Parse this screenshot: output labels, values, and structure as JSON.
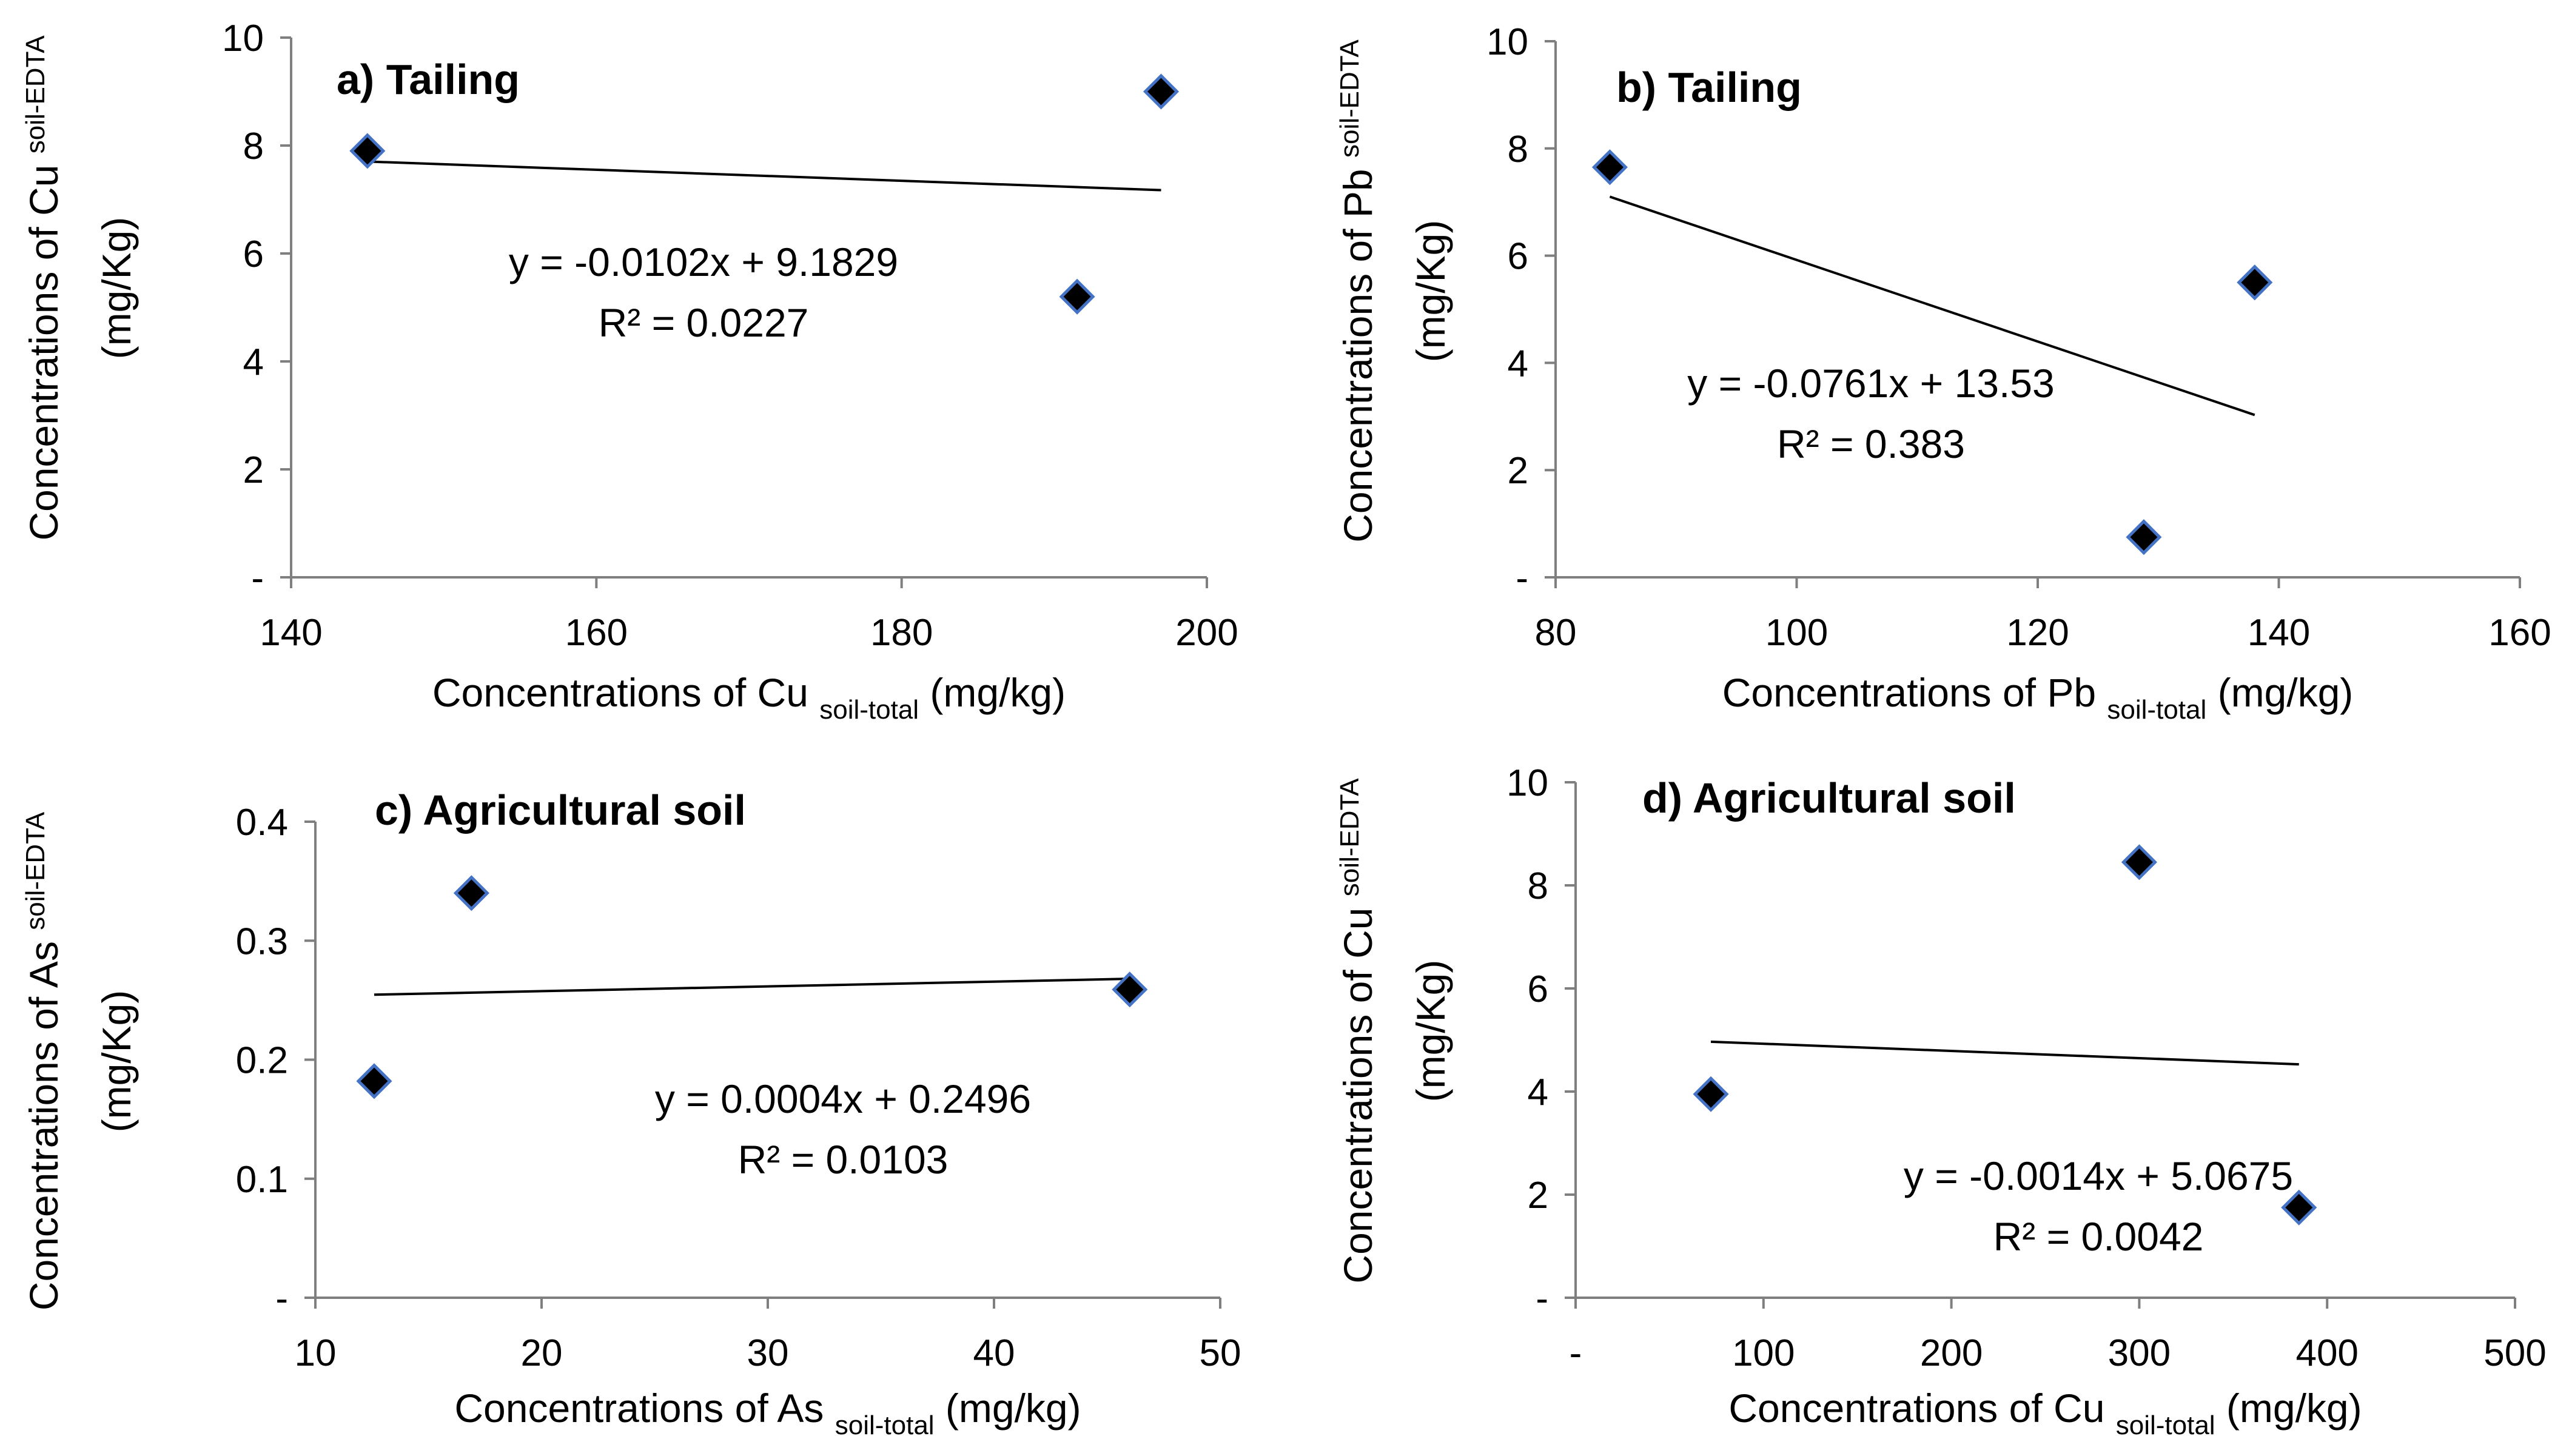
{
  "chart_data": [
    {
      "type": "scatter",
      "title": "a) Tailing",
      "xlabel": {
        "main": "Concentrations of Cu",
        "sub": "soil-total",
        "unit": "(mg/kg)"
      },
      "ylabel": {
        "main": "Concentrations of Cu",
        "sub": "soil-EDTA",
        "unit": "(mg/Kg)"
      },
      "xlim": [
        140,
        200
      ],
      "ylim": [
        0,
        10
      ],
      "xticks": [
        "140",
        "160",
        "180",
        "200"
      ],
      "yticks": [
        "-",
        "2",
        "4",
        "6",
        "8",
        "10"
      ],
      "points": [
        {
          "x": 145,
          "y": 7.9
        },
        {
          "x": 191.5,
          "y": 5.2
        },
        {
          "x": 197,
          "y": 9.0
        }
      ],
      "trendline": {
        "slope": -0.0102,
        "intercept": 9.1829,
        "x_range": [
          145,
          197
        ]
      },
      "equation": "y = -0.0102x + 9.1829",
      "r2": "R² = 0.0227",
      "marker_color": "#000000",
      "marker_edge": "#4472c4"
    },
    {
      "type": "scatter",
      "title": "b) Tailing",
      "xlabel": {
        "main": "Concentrations of Pb",
        "sub": "soil-total",
        "unit": "(mg/kg)"
      },
      "ylabel": {
        "main": "Concentrations of Pb",
        "sub": "soil-EDTA",
        "unit": "(mg/Kg)"
      },
      "xlim": [
        80,
        160
      ],
      "ylim": [
        0,
        10
      ],
      "xticks": [
        "80",
        "100",
        "120",
        "140",
        "160"
      ],
      "yticks": [
        "-",
        "2",
        "4",
        "6",
        "8",
        "10"
      ],
      "points": [
        {
          "x": 84.5,
          "y": 7.65
        },
        {
          "x": 128.8,
          "y": 0.75
        },
        {
          "x": 138,
          "y": 5.5
        }
      ],
      "trendline": {
        "slope": -0.0761,
        "intercept": 13.53,
        "x_range": [
          84.5,
          138
        ]
      },
      "equation": "y = -0.0761x + 13.53",
      "r2": "R² = 0.383",
      "marker_color": "#000000",
      "marker_edge": "#4472c4"
    },
    {
      "type": "scatter",
      "title": "c) Agricultural soil",
      "xlabel": {
        "main": "Concentrations of As",
        "sub": "soil-total",
        "unit": "(mg/kg)"
      },
      "ylabel": {
        "main": "Concentrations of As",
        "sub": "soil-EDTA",
        "unit": "(mg/Kg)"
      },
      "xlim": [
        10,
        50
      ],
      "ylim": [
        0,
        0.4
      ],
      "xticks": [
        "10",
        "20",
        "30",
        "40",
        "50"
      ],
      "yticks": [
        "-",
        "0.1",
        "0.2",
        "0.3",
        "0.4"
      ],
      "points": [
        {
          "x": 12.6,
          "y": 0.182
        },
        {
          "x": 16.9,
          "y": 0.34
        },
        {
          "x": 46,
          "y": 0.259
        }
      ],
      "trendline": {
        "slope": 0.0004,
        "intercept": 0.2496,
        "x_range": [
          12.6,
          46
        ]
      },
      "equation": "y = 0.0004x + 0.2496",
      "r2": "R² = 0.0103",
      "marker_color": "#000000",
      "marker_edge": "#4472c4"
    },
    {
      "type": "scatter",
      "title": "d) Agricultural soil",
      "xlabel": {
        "main": "Concentrations of Cu",
        "sub": "soil-total",
        "unit": "(mg/kg)"
      },
      "ylabel": {
        "main": "Concentrations of Cu",
        "sub": "soil-EDTA",
        "unit": "(mg/Kg)"
      },
      "xlim": [
        0,
        500
      ],
      "ylim": [
        0,
        10
      ],
      "xticks": [
        "-",
        "100",
        "200",
        "300",
        "400",
        "500"
      ],
      "yticks": [
        "-",
        "2",
        "4",
        "6",
        "8",
        "10"
      ],
      "points": [
        {
          "x": 72,
          "y": 3.95
        },
        {
          "x": 300,
          "y": 8.45
        },
        {
          "x": 385,
          "y": 1.75
        }
      ],
      "trendline": {
        "slope": -0.0014,
        "intercept": 5.0675,
        "x_range": [
          72,
          385
        ]
      },
      "equation": "y = -0.0014x + 5.0675",
      "r2": "R² = 0.0042",
      "marker_color": "#000000",
      "marker_edge": "#4472c4"
    }
  ]
}
